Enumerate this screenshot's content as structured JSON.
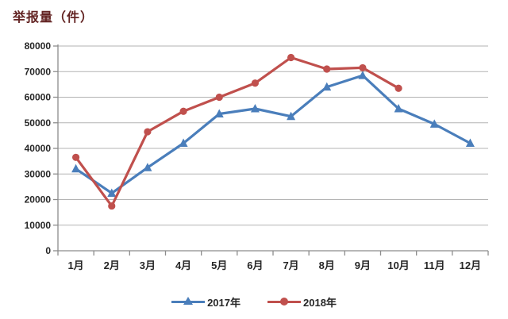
{
  "title": "举报量（件）",
  "colors": {
    "series_2017": "#4a7ebb",
    "series_2018": "#c0504d",
    "gridline": "#b3b3b3",
    "axis": "#8c8c8c",
    "title_text": "#632423",
    "label_text": "#262626"
  },
  "chart_data": {
    "type": "line",
    "title": "举报量（件）",
    "xlabel": "",
    "ylabel": "举报量（件）",
    "categories": [
      "1月",
      "2月",
      "3月",
      "4月",
      "5月",
      "6月",
      "7月",
      "8月",
      "9月",
      "10月",
      "11月",
      "12月"
    ],
    "series": [
      {
        "name": "2017年",
        "color": "#4a7ebb",
        "marker": "triangle",
        "values": [
          32000,
          22500,
          32500,
          42000,
          53500,
          55500,
          52500,
          64000,
          68500,
          55500,
          49500,
          42000
        ]
      },
      {
        "name": "2018年",
        "color": "#c0504d",
        "marker": "circle",
        "values": [
          36500,
          17500,
          46500,
          54500,
          60000,
          65500,
          75500,
          71000,
          71500,
          63500
        ]
      }
    ],
    "ylim": [
      0,
      80000
    ],
    "y_ticks": [
      0,
      10000,
      20000,
      30000,
      40000,
      50000,
      60000,
      70000,
      80000
    ],
    "grid": true,
    "legend_position": "bottom"
  }
}
